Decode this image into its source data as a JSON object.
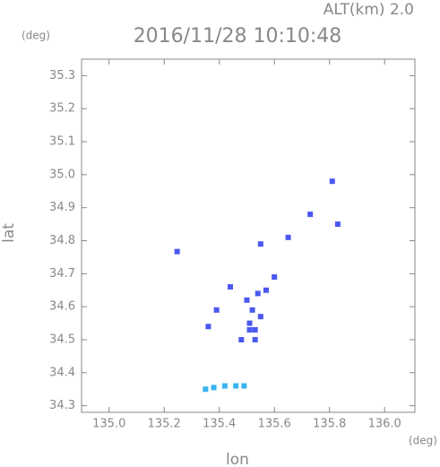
{
  "chart_data": {
    "type": "scatter",
    "title": "2016/11/28 10:10:48",
    "subtitle": "ALT(km) 2.0",
    "x_label": "lon",
    "y_label": "lat",
    "x_unit": "(deg)",
    "y_unit": "(deg)",
    "xlim": [
      134.9,
      136.11
    ],
    "ylim": [
      34.28,
      35.35
    ],
    "xticks": [
      {
        "value": 135.0,
        "label": "135.0"
      },
      135.2,
      135.4,
      135.6,
      135.8,
      {
        "value": 136.0,
        "label": "136.0"
      }
    ],
    "yticks": [
      34.3,
      34.4,
      34.5,
      34.6,
      34.7,
      34.8,
      34.9,
      {
        "value": 35.0,
        "label": "35.0"
      },
      35.1,
      35.2,
      35.3
    ],
    "series": [
      {
        "color": "#4a58f0",
        "x": [
          135.247,
          135.81,
          135.73,
          135.83,
          135.65,
          135.55,
          135.6,
          135.44,
          135.54,
          135.57,
          135.5,
          135.39,
          135.52,
          135.55,
          135.51,
          135.36,
          135.53,
          135.51,
          135.48,
          135.53
        ],
        "y": [
          34.767,
          34.98,
          34.88,
          34.85,
          34.81,
          34.79,
          34.69,
          34.66,
          34.64,
          34.65,
          34.62,
          34.59,
          34.59,
          34.57,
          34.55,
          34.54,
          34.53,
          34.53,
          34.5,
          34.5
        ]
      },
      {
        "color": "#3ab4f0",
        "x": [
          135.35,
          135.38,
          135.42,
          135.46,
          135.49
        ],
        "y": [
          34.35,
          34.355,
          34.36,
          34.36,
          34.36
        ]
      }
    ]
  }
}
